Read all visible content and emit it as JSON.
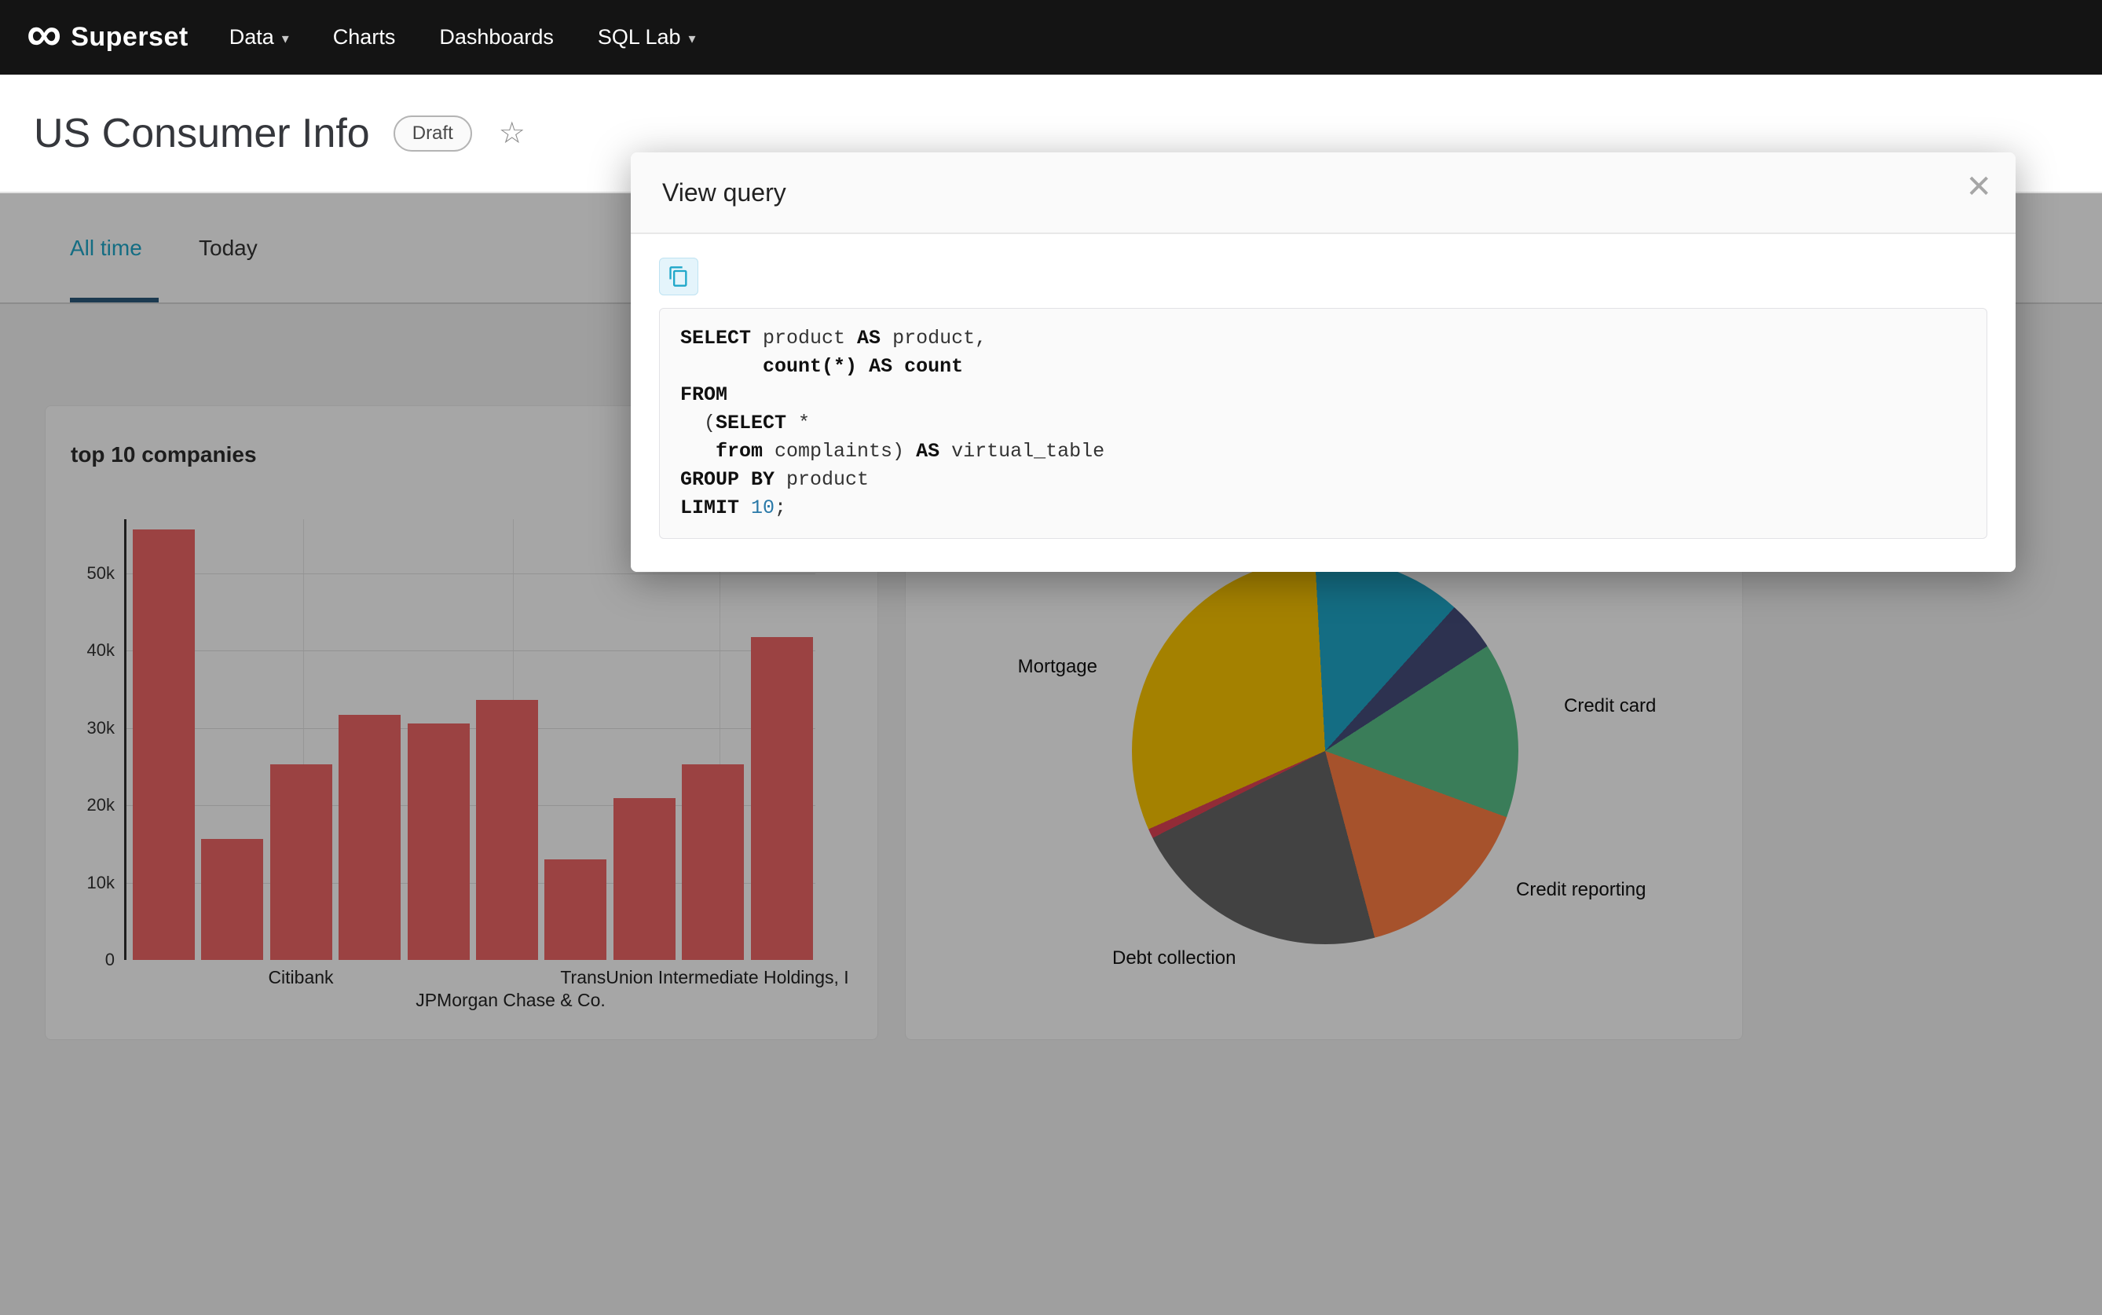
{
  "nav": {
    "brand": "Superset",
    "items": [
      {
        "label": "Data",
        "has_caret": true
      },
      {
        "label": "Charts",
        "has_caret": false
      },
      {
        "label": "Dashboards",
        "has_caret": false
      },
      {
        "label": "SQL Lab",
        "has_caret": true
      }
    ]
  },
  "icons": {
    "infinity": "∞",
    "star": "☆",
    "close": "✕",
    "caret_down": "▾"
  },
  "header": {
    "title": "US Consumer Info",
    "badge": "Draft"
  },
  "tabs": {
    "items": [
      {
        "label": "All time",
        "active": true
      },
      {
        "label": "Today",
        "active": false
      }
    ]
  },
  "modal": {
    "title": "View query",
    "sql_lines": [
      [
        {
          "k": "kw",
          "v": "SELECT"
        },
        {
          "k": "t",
          "v": " product "
        },
        {
          "k": "kw",
          "v": "AS"
        },
        {
          "k": "t",
          "v": " product,"
        }
      ],
      [
        {
          "k": "t",
          "v": "       "
        },
        {
          "k": "kw",
          "v": "count(*)"
        },
        {
          "k": "t",
          "v": " "
        },
        {
          "k": "kw",
          "v": "AS"
        },
        {
          "k": "t",
          "v": " "
        },
        {
          "k": "kw",
          "v": "count"
        }
      ],
      [
        {
          "k": "kw",
          "v": "FROM"
        }
      ],
      [
        {
          "k": "t",
          "v": "  ("
        },
        {
          "k": "kw",
          "v": "SELECT"
        },
        {
          "k": "t",
          "v": " *"
        }
      ],
      [
        {
          "k": "t",
          "v": "   "
        },
        {
          "k": "kw",
          "v": "from"
        },
        {
          "k": "t",
          "v": " complaints) "
        },
        {
          "k": "kw",
          "v": "AS"
        },
        {
          "k": "t",
          "v": " virtual_table"
        }
      ],
      [
        {
          "k": "kw",
          "v": "GROUP BY"
        },
        {
          "k": "t",
          "v": " product"
        }
      ],
      [
        {
          "k": "kw",
          "v": "LIMIT"
        },
        {
          "k": "t",
          "v": " "
        },
        {
          "k": "n",
          "v": "10"
        },
        {
          "k": "t",
          "v": ";"
        }
      ]
    ]
  },
  "chart_data": [
    {
      "type": "bar",
      "title": "top 10 companies",
      "values": [
        55700,
        15600,
        25300,
        31700,
        30600,
        33600,
        13000,
        20900,
        25300,
        41800
      ],
      "ylim": [
        0,
        57000
      ],
      "yticks": [
        {
          "label": "0",
          "value": 0
        },
        {
          "label": "10k",
          "value": 10000
        },
        {
          "label": "20k",
          "value": 20000
        },
        {
          "label": "30k",
          "value": 30000
        },
        {
          "label": "40k",
          "value": 40000
        },
        {
          "label": "50k",
          "value": 50000
        }
      ],
      "xtick_labels": [
        "Citibank",
        "JPMorgan Chase & Co.",
        "TransUnion Intermediate Holdings, I"
      ],
      "bar_color": "#ee6666",
      "grid": true,
      "legend": "none"
    },
    {
      "type": "pie",
      "start_angle_deg": -3,
      "slices": [
        {
          "label": "",
          "percent": 12.5,
          "color": "#1FA8C9"
        },
        {
          "label": "",
          "percent": 4.2,
          "color": "#454E7C"
        },
        {
          "label": "Credit card",
          "percent": 14.7,
          "color": "#5AC189"
        },
        {
          "label": "Credit reporting",
          "percent": 15.3,
          "color": "#FF7F44"
        },
        {
          "label": "Debt collection",
          "percent": 21.7,
          "color": "#666666"
        },
        {
          "label": "",
          "percent": 0.8,
          "color": "#E04355"
        },
        {
          "label": "Mortgage",
          "percent": 30.8,
          "color": "#FCC700"
        }
      ],
      "legend": "none"
    }
  ],
  "colors": {
    "accent": "#20A7C9",
    "nav_bg": "#141414",
    "page_bg": "#F5F5F5",
    "active_tab_ink": "#2c5a7c",
    "sql_number": "#2979a8",
    "overlay": "rgba(0,0,0,0.35)"
  }
}
